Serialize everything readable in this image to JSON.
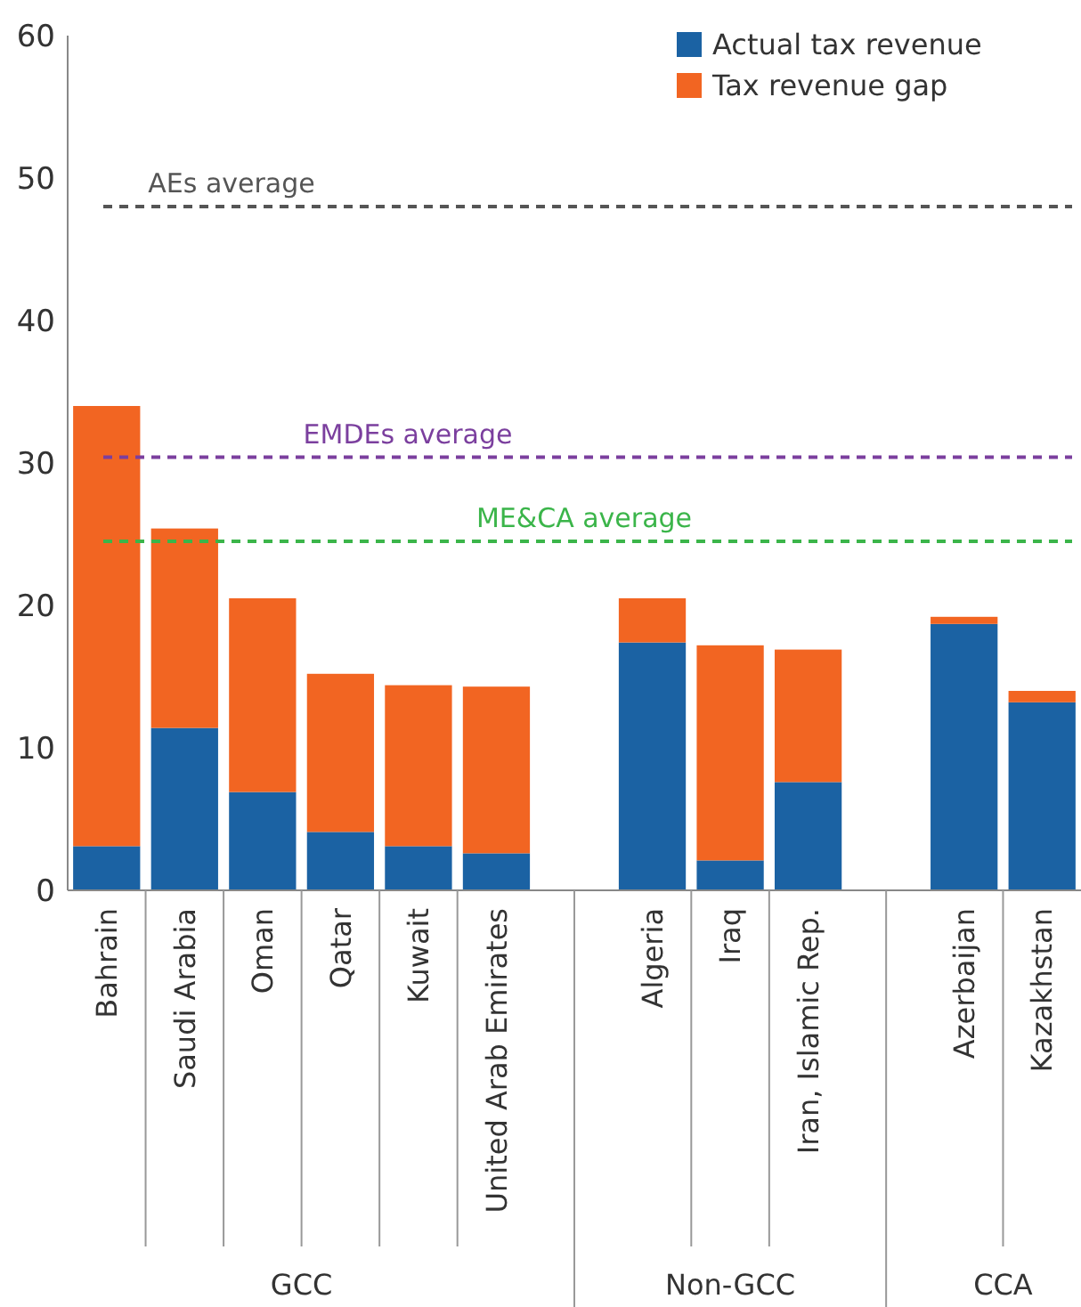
{
  "chart_data": {
    "type": "bar",
    "stacked": true,
    "legend": "top right",
    "categories": [
      "Bahrain",
      "Saudi Arabia",
      "Oman",
      "Qatar",
      "Kuwait",
      "United Arab Emirates",
      null,
      "Algeria",
      "Iraq",
      "Iran, Islamic Rep.",
      null,
      "Azerbaijan",
      "Kazakhstan"
    ],
    "series": [
      {
        "name": "Actual tax revenue",
        "color": "#1b62a3",
        "values": [
          3.1,
          11.4,
          6.9,
          4.1,
          3.1,
          2.6,
          null,
          17.4,
          2.1,
          7.6,
          null,
          18.7,
          13.2
        ]
      },
      {
        "name": "Tax revenue gap",
        "color": "#f26522",
        "values": [
          30.9,
          14.0,
          13.6,
          11.1,
          11.3,
          11.7,
          null,
          3.1,
          15.1,
          9.3,
          null,
          0.5,
          0.8
        ]
      }
    ],
    "ylim": [
      0,
      60
    ],
    "yticks": [
      0,
      10,
      20,
      30,
      40,
      50,
      60
    ],
    "ref_lines": [
      {
        "axis": "y",
        "value": 48,
        "label": "AEs average",
        "color": "#555555",
        "line_style": "dashed"
      },
      {
        "axis": "y",
        "value": 30.4,
        "label": "EMDEs average",
        "color": "#7b3f9e",
        "line_style": "dashed"
      },
      {
        "axis": "y",
        "value": 24.5,
        "label": "ME&CA average",
        "color": "#3bb54a",
        "line_style": "dashed"
      }
    ],
    "annotations": [
      "GCC",
      "Non-GCC",
      "CCA"
    ]
  }
}
